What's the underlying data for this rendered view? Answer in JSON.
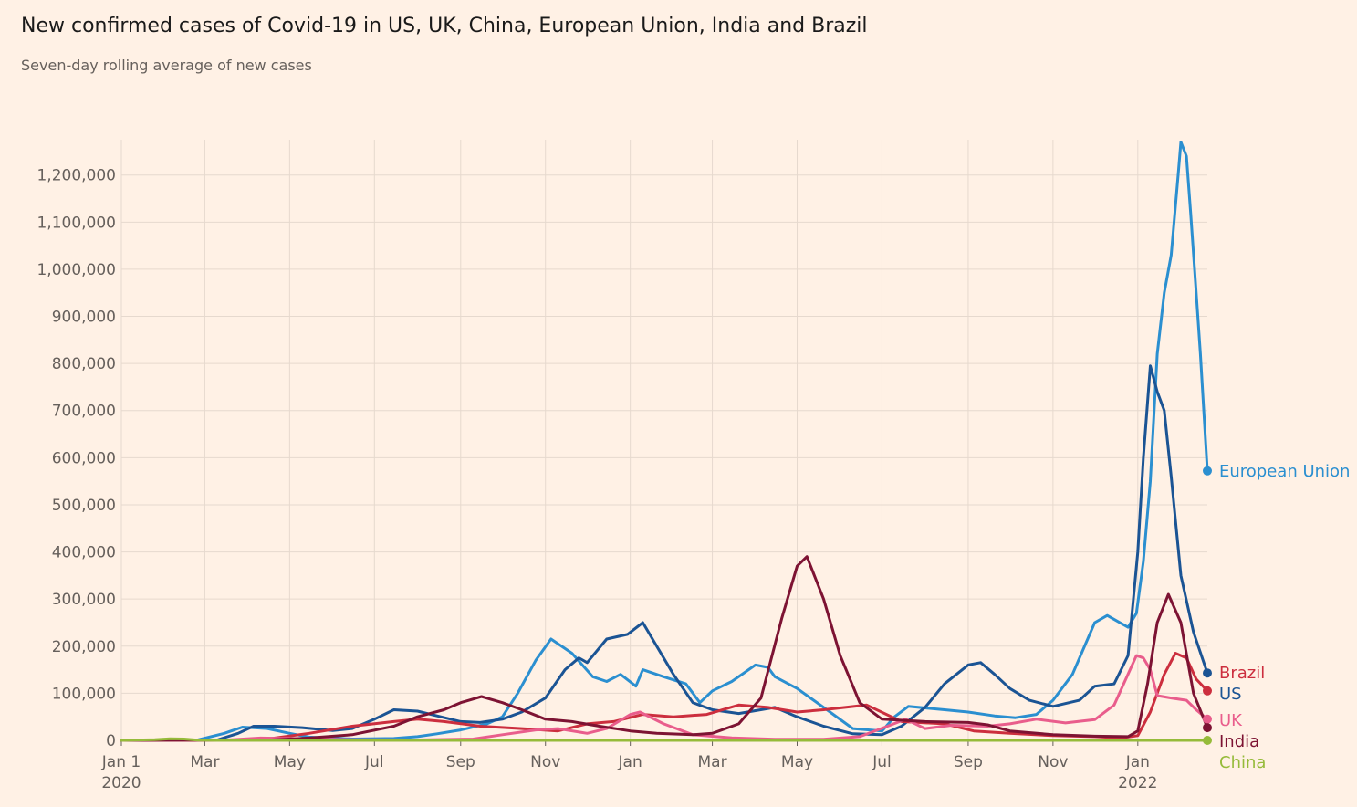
{
  "title": "New confirmed cases of Covid-19 in US, UK, China, European Union, India and Brazil",
  "subtitle": "Seven-day rolling average of new cases",
  "chart_data": {
    "type": "line",
    "ylim": [
      0,
      1275000
    ],
    "grid": true,
    "y_ticks": [
      0,
      100000,
      200000,
      300000,
      400000,
      500000,
      600000,
      700000,
      800000,
      900000,
      1000000,
      1100000,
      1200000
    ],
    "y_tick_labels": [
      "0",
      "100,000",
      "200,000",
      "300,000",
      "400,000",
      "500,000",
      "600,000",
      "700,000",
      "800,000",
      "900,000",
      "1,000,000",
      "1,100,000",
      "1,200,000"
    ],
    "x_ticks": [
      "2020-01-01",
      "2020-03-01",
      "2020-05-01",
      "2020-07-01",
      "2020-09-01",
      "2020-11-01",
      "2021-01-01",
      "2021-03-01",
      "2021-05-01",
      "2021-07-01",
      "2021-09-01",
      "2021-11-01",
      "2022-01-01"
    ],
    "x_tick_labels": [
      "Jan 1",
      "Mar",
      "May",
      "Jul",
      "Sep",
      "Nov",
      "Jan",
      "Mar",
      "May",
      "Jul",
      "Sep",
      "Nov",
      "Jan"
    ],
    "x_year_labels": [
      "2020",
      "2022"
    ],
    "x_range": [
      "2020-01-01",
      "2022-02-20"
    ],
    "series": [
      {
        "name": "European Union",
        "color": "#2b8fd0",
        "end_value": 572000,
        "points": [
          [
            "2020-01-01",
            0
          ],
          [
            "2020-02-25",
            1000
          ],
          [
            "2020-03-15",
            15000
          ],
          [
            "2020-03-28",
            28000
          ],
          [
            "2020-04-15",
            25000
          ],
          [
            "2020-05-01",
            15000
          ],
          [
            "2020-05-15",
            7000
          ],
          [
            "2020-06-15",
            3000
          ],
          [
            "2020-07-15",
            4000
          ],
          [
            "2020-08-01",
            8000
          ],
          [
            "2020-08-15",
            14000
          ],
          [
            "2020-09-01",
            22000
          ],
          [
            "2020-09-20",
            35000
          ],
          [
            "2020-10-01",
            50000
          ],
          [
            "2020-10-12",
            100000
          ],
          [
            "2020-10-25",
            170000
          ],
          [
            "2020-11-05",
            215000
          ],
          [
            "2020-11-20",
            185000
          ],
          [
            "2020-12-05",
            135000
          ],
          [
            "2020-12-15",
            125000
          ],
          [
            "2020-12-25",
            140000
          ],
          [
            "2021-01-05",
            115000
          ],
          [
            "2021-01-10",
            150000
          ],
          [
            "2021-01-25",
            135000
          ],
          [
            "2021-02-10",
            120000
          ],
          [
            "2021-02-20",
            80000
          ],
          [
            "2021-03-01",
            105000
          ],
          [
            "2021-03-15",
            125000
          ],
          [
            "2021-04-01",
            160000
          ],
          [
            "2021-04-10",
            155000
          ],
          [
            "2021-04-15",
            135000
          ],
          [
            "2021-05-01",
            110000
          ],
          [
            "2021-05-20",
            70000
          ],
          [
            "2021-06-10",
            25000
          ],
          [
            "2021-07-01",
            20000
          ],
          [
            "2021-07-10",
            50000
          ],
          [
            "2021-07-20",
            72000
          ],
          [
            "2021-08-15",
            65000
          ],
          [
            "2021-09-01",
            60000
          ],
          [
            "2021-09-20",
            52000
          ],
          [
            "2021-10-05",
            48000
          ],
          [
            "2021-10-20",
            55000
          ],
          [
            "2021-11-01",
            85000
          ],
          [
            "2021-11-15",
            140000
          ],
          [
            "2021-12-01",
            250000
          ],
          [
            "2021-12-10",
            265000
          ],
          [
            "2021-12-25",
            240000
          ],
          [
            "2021-12-31",
            270000
          ],
          [
            "2022-01-05",
            380000
          ],
          [
            "2022-01-10",
            550000
          ],
          [
            "2022-01-15",
            820000
          ],
          [
            "2022-01-20",
            950000
          ],
          [
            "2022-01-25",
            1030000
          ],
          [
            "2022-01-30",
            1200000
          ],
          [
            "2022-02-01",
            1270000
          ],
          [
            "2022-02-05",
            1240000
          ],
          [
            "2022-02-08",
            1120000
          ],
          [
            "2022-02-12",
            950000
          ],
          [
            "2022-02-15",
            820000
          ],
          [
            "2022-02-20",
            572000
          ]
        ]
      },
      {
        "name": "US",
        "color": "#1b5494",
        "end_value": 143000,
        "points": [
          [
            "2020-01-01",
            0
          ],
          [
            "2020-03-10",
            1000
          ],
          [
            "2020-03-25",
            15000
          ],
          [
            "2020-04-05",
            30000
          ],
          [
            "2020-04-20",
            30000
          ],
          [
            "2020-05-10",
            27000
          ],
          [
            "2020-06-01",
            21000
          ],
          [
            "2020-06-15",
            25000
          ],
          [
            "2020-07-01",
            45000
          ],
          [
            "2020-07-15",
            65000
          ],
          [
            "2020-08-01",
            62000
          ],
          [
            "2020-08-15",
            52000
          ],
          [
            "2020-09-01",
            40000
          ],
          [
            "2020-09-15",
            38000
          ],
          [
            "2020-10-01",
            45000
          ],
          [
            "2020-10-15",
            60000
          ],
          [
            "2020-11-01",
            90000
          ],
          [
            "2020-11-15",
            150000
          ],
          [
            "2020-11-25",
            175000
          ],
          [
            "2020-12-01",
            165000
          ],
          [
            "2020-12-15",
            215000
          ],
          [
            "2020-12-30",
            225000
          ],
          [
            "2021-01-10",
            250000
          ],
          [
            "2021-01-20",
            200000
          ],
          [
            "2021-02-01",
            140000
          ],
          [
            "2021-02-15",
            80000
          ],
          [
            "2021-03-01",
            65000
          ],
          [
            "2021-03-20",
            57000
          ],
          [
            "2021-04-15",
            70000
          ],
          [
            "2021-05-01",
            50000
          ],
          [
            "2021-05-20",
            30000
          ],
          [
            "2021-06-10",
            14000
          ],
          [
            "2021-07-01",
            12000
          ],
          [
            "2021-07-15",
            30000
          ],
          [
            "2021-08-01",
            70000
          ],
          [
            "2021-08-15",
            120000
          ],
          [
            "2021-09-01",
            160000
          ],
          [
            "2021-09-10",
            165000
          ],
          [
            "2021-09-20",
            140000
          ],
          [
            "2021-10-01",
            110000
          ],
          [
            "2021-10-15",
            85000
          ],
          [
            "2021-11-01",
            72000
          ],
          [
            "2021-11-20",
            85000
          ],
          [
            "2021-12-01",
            115000
          ],
          [
            "2021-12-15",
            120000
          ],
          [
            "2021-12-25",
            180000
          ],
          [
            "2022-01-01",
            400000
          ],
          [
            "2022-01-05",
            600000
          ],
          [
            "2022-01-10",
            795000
          ],
          [
            "2022-01-15",
            740000
          ],
          [
            "2022-01-20",
            700000
          ],
          [
            "2022-01-25",
            560000
          ],
          [
            "2022-02-01",
            350000
          ],
          [
            "2022-02-10",
            230000
          ],
          [
            "2022-02-20",
            143000
          ]
        ]
      },
      {
        "name": "Brazil",
        "color": "#cc2e3e",
        "end_value": 105000,
        "points": [
          [
            "2020-01-01",
            0
          ],
          [
            "2020-03-15",
            0
          ],
          [
            "2020-04-15",
            3000
          ],
          [
            "2020-05-15",
            15000
          ],
          [
            "2020-06-15",
            30000
          ],
          [
            "2020-07-15",
            40000
          ],
          [
            "2020-08-01",
            45000
          ],
          [
            "2020-08-20",
            40000
          ],
          [
            "2020-09-15",
            30000
          ],
          [
            "2020-10-15",
            25000
          ],
          [
            "2020-11-10",
            20000
          ],
          [
            "2020-12-01",
            35000
          ],
          [
            "2020-12-20",
            40000
          ],
          [
            "2021-01-10",
            55000
          ],
          [
            "2021-02-01",
            50000
          ],
          [
            "2021-02-25",
            55000
          ],
          [
            "2021-03-20",
            75000
          ],
          [
            "2021-04-10",
            70000
          ],
          [
            "2021-05-01",
            60000
          ],
          [
            "2021-05-20",
            65000
          ],
          [
            "2021-06-20",
            75000
          ],
          [
            "2021-07-15",
            40000
          ],
          [
            "2021-08-15",
            35000
          ],
          [
            "2021-09-05",
            20000
          ],
          [
            "2021-10-01",
            15000
          ],
          [
            "2021-11-01",
            10000
          ],
          [
            "2021-12-01",
            8000
          ],
          [
            "2021-12-20",
            5000
          ],
          [
            "2022-01-01",
            10000
          ],
          [
            "2022-01-10",
            60000
          ],
          [
            "2022-01-20",
            140000
          ],
          [
            "2022-01-28",
            185000
          ],
          [
            "2022-02-05",
            175000
          ],
          [
            "2022-02-12",
            130000
          ],
          [
            "2022-02-20",
            105000
          ]
        ]
      },
      {
        "name": "UK",
        "color": "#e95d8c",
        "end_value": 45000,
        "points": [
          [
            "2020-01-01",
            0
          ],
          [
            "2020-03-15",
            500
          ],
          [
            "2020-04-10",
            5000
          ],
          [
            "2020-05-01",
            4000
          ],
          [
            "2020-06-15",
            1500
          ],
          [
            "2020-08-01",
            1000
          ],
          [
            "2020-09-10",
            3000
          ],
          [
            "2020-10-01",
            12000
          ],
          [
            "2020-10-25",
            22000
          ],
          [
            "2020-11-10",
            25000
          ],
          [
            "2020-12-01",
            15000
          ],
          [
            "2020-12-15",
            25000
          ],
          [
            "2021-01-01",
            55000
          ],
          [
            "2021-01-08",
            60000
          ],
          [
            "2021-01-25",
            35000
          ],
          [
            "2021-02-15",
            12000
          ],
          [
            "2021-03-15",
            5500
          ],
          [
            "2021-04-15",
            2500
          ],
          [
            "2021-05-20",
            2500
          ],
          [
            "2021-06-15",
            8000
          ],
          [
            "2021-07-05",
            30000
          ],
          [
            "2021-07-18",
            45000
          ],
          [
            "2021-08-01",
            25000
          ],
          [
            "2021-08-20",
            32000
          ],
          [
            "2021-09-15",
            30000
          ],
          [
            "2021-10-01",
            35000
          ],
          [
            "2021-10-20",
            45000
          ],
          [
            "2021-11-10",
            37000
          ],
          [
            "2021-12-01",
            44000
          ],
          [
            "2021-12-15",
            75000
          ],
          [
            "2021-12-31",
            180000
          ],
          [
            "2022-01-05",
            175000
          ],
          [
            "2022-01-10",
            150000
          ],
          [
            "2022-01-15",
            95000
          ],
          [
            "2022-01-25",
            90000
          ],
          [
            "2022-02-05",
            85000
          ],
          [
            "2022-02-12",
            65000
          ],
          [
            "2022-02-20",
            45000
          ]
        ]
      },
      {
        "name": "India",
        "color": "#7d1333",
        "end_value": 27000,
        "points": [
          [
            "2020-01-01",
            0
          ],
          [
            "2020-04-15",
            500
          ],
          [
            "2020-05-15",
            5000
          ],
          [
            "2020-06-15",
            12000
          ],
          [
            "2020-07-15",
            30000
          ],
          [
            "2020-08-01",
            50000
          ],
          [
            "2020-08-20",
            65000
          ],
          [
            "2020-09-01",
            80000
          ],
          [
            "2020-09-16",
            93000
          ],
          [
            "2020-10-01",
            80000
          ],
          [
            "2020-10-15",
            65000
          ],
          [
            "2020-11-01",
            45000
          ],
          [
            "2020-11-20",
            40000
          ],
          [
            "2020-12-10",
            30000
          ],
          [
            "2021-01-01",
            20000
          ],
          [
            "2021-01-20",
            15000
          ],
          [
            "2021-02-15",
            12000
          ],
          [
            "2021-03-01",
            15000
          ],
          [
            "2021-03-20",
            35000
          ],
          [
            "2021-04-05",
            90000
          ],
          [
            "2021-04-20",
            260000
          ],
          [
            "2021-05-01",
            370000
          ],
          [
            "2021-05-08",
            390000
          ],
          [
            "2021-05-20",
            300000
          ],
          [
            "2021-06-01",
            180000
          ],
          [
            "2021-06-15",
            80000
          ],
          [
            "2021-07-01",
            45000
          ],
          [
            "2021-08-01",
            40000
          ],
          [
            "2021-09-01",
            38000
          ],
          [
            "2021-09-15",
            33000
          ],
          [
            "2021-10-01",
            20000
          ],
          [
            "2021-11-01",
            12000
          ],
          [
            "2021-12-01",
            9000
          ],
          [
            "2021-12-25",
            8000
          ],
          [
            "2022-01-01",
            20000
          ],
          [
            "2022-01-08",
            120000
          ],
          [
            "2022-01-15",
            250000
          ],
          [
            "2022-01-23",
            310000
          ],
          [
            "2022-02-01",
            250000
          ],
          [
            "2022-02-10",
            100000
          ],
          [
            "2022-02-20",
            27000
          ]
        ]
      },
      {
        "name": "China",
        "color": "#96bb3a",
        "end_value": 50,
        "points": [
          [
            "2020-01-01",
            0
          ],
          [
            "2020-01-25",
            1500
          ],
          [
            "2020-02-05",
            3500
          ],
          [
            "2020-02-15",
            3000
          ],
          [
            "2020-02-25",
            500
          ],
          [
            "2020-03-10",
            50
          ],
          [
            "2022-02-20",
            50
          ]
        ]
      }
    ]
  }
}
